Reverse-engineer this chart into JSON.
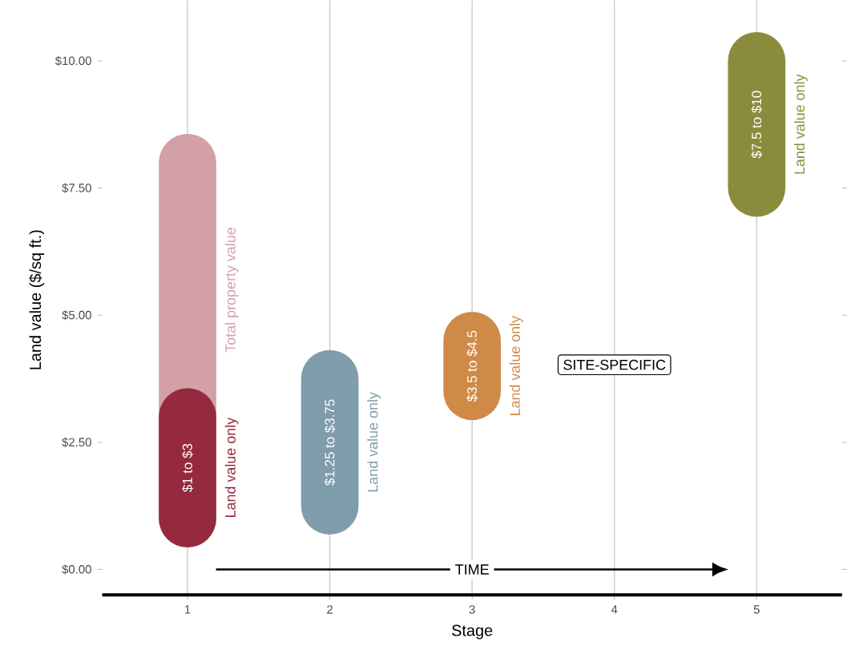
{
  "chart_data": {
    "type": "bar",
    "xlabel": "Stage",
    "ylabel": "Land value ($/sq ft.)",
    "xlim": [
      0.4,
      5.6
    ],
    "xticks": [
      1,
      2,
      3,
      4,
      5
    ],
    "ylim": [
      -0.5,
      11.1
    ],
    "yticks": [
      {
        "value": 0,
        "label": "$0.00"
      },
      {
        "value": 2.5,
        "label": "$2.50"
      },
      {
        "value": 5,
        "label": "$5.00"
      },
      {
        "value": 7.5,
        "label": "$7.50"
      },
      {
        "value": 10,
        "label": "$10.00"
      }
    ],
    "grid": "x",
    "series": [
      {
        "name": "Total property value",
        "color": "#d4a0a8",
        "x": [
          1
        ],
        "base": [
          1
        ],
        "values": [
          7
        ]
      },
      {
        "name": "Land value only",
        "color": "#952a3e",
        "x": [
          1
        ],
        "base": [
          1
        ],
        "values": [
          2
        ]
      },
      {
        "name": "Land value only",
        "color": "#7f9daa",
        "x": [
          2
        ],
        "base": [
          1.25
        ],
        "values": [
          2.5
        ]
      },
      {
        "name": "Land value only",
        "color": "#d08a48",
        "x": [
          3
        ],
        "base": [
          3.5
        ],
        "values": [
          1
        ]
      },
      {
        "name": "Land value only",
        "color": "#8a8c3c",
        "x": [
          5
        ],
        "base": [
          7.5
        ],
        "values": [
          2.5
        ]
      }
    ],
    "annotations": [
      "SITE-SPECIFIC",
      "TIME",
      {
        "text": "$1 to $3",
        "x": 1,
        "y": 3
      },
      {
        "text": "$1.25 to $3.75",
        "x": 2,
        "y": 3.75
      },
      {
        "text": "$3.5 to $4.5",
        "x": 3,
        "y": 4.5
      },
      {
        "text": "$7.5 to $10",
        "x": 5,
        "y": 10
      }
    ]
  }
}
